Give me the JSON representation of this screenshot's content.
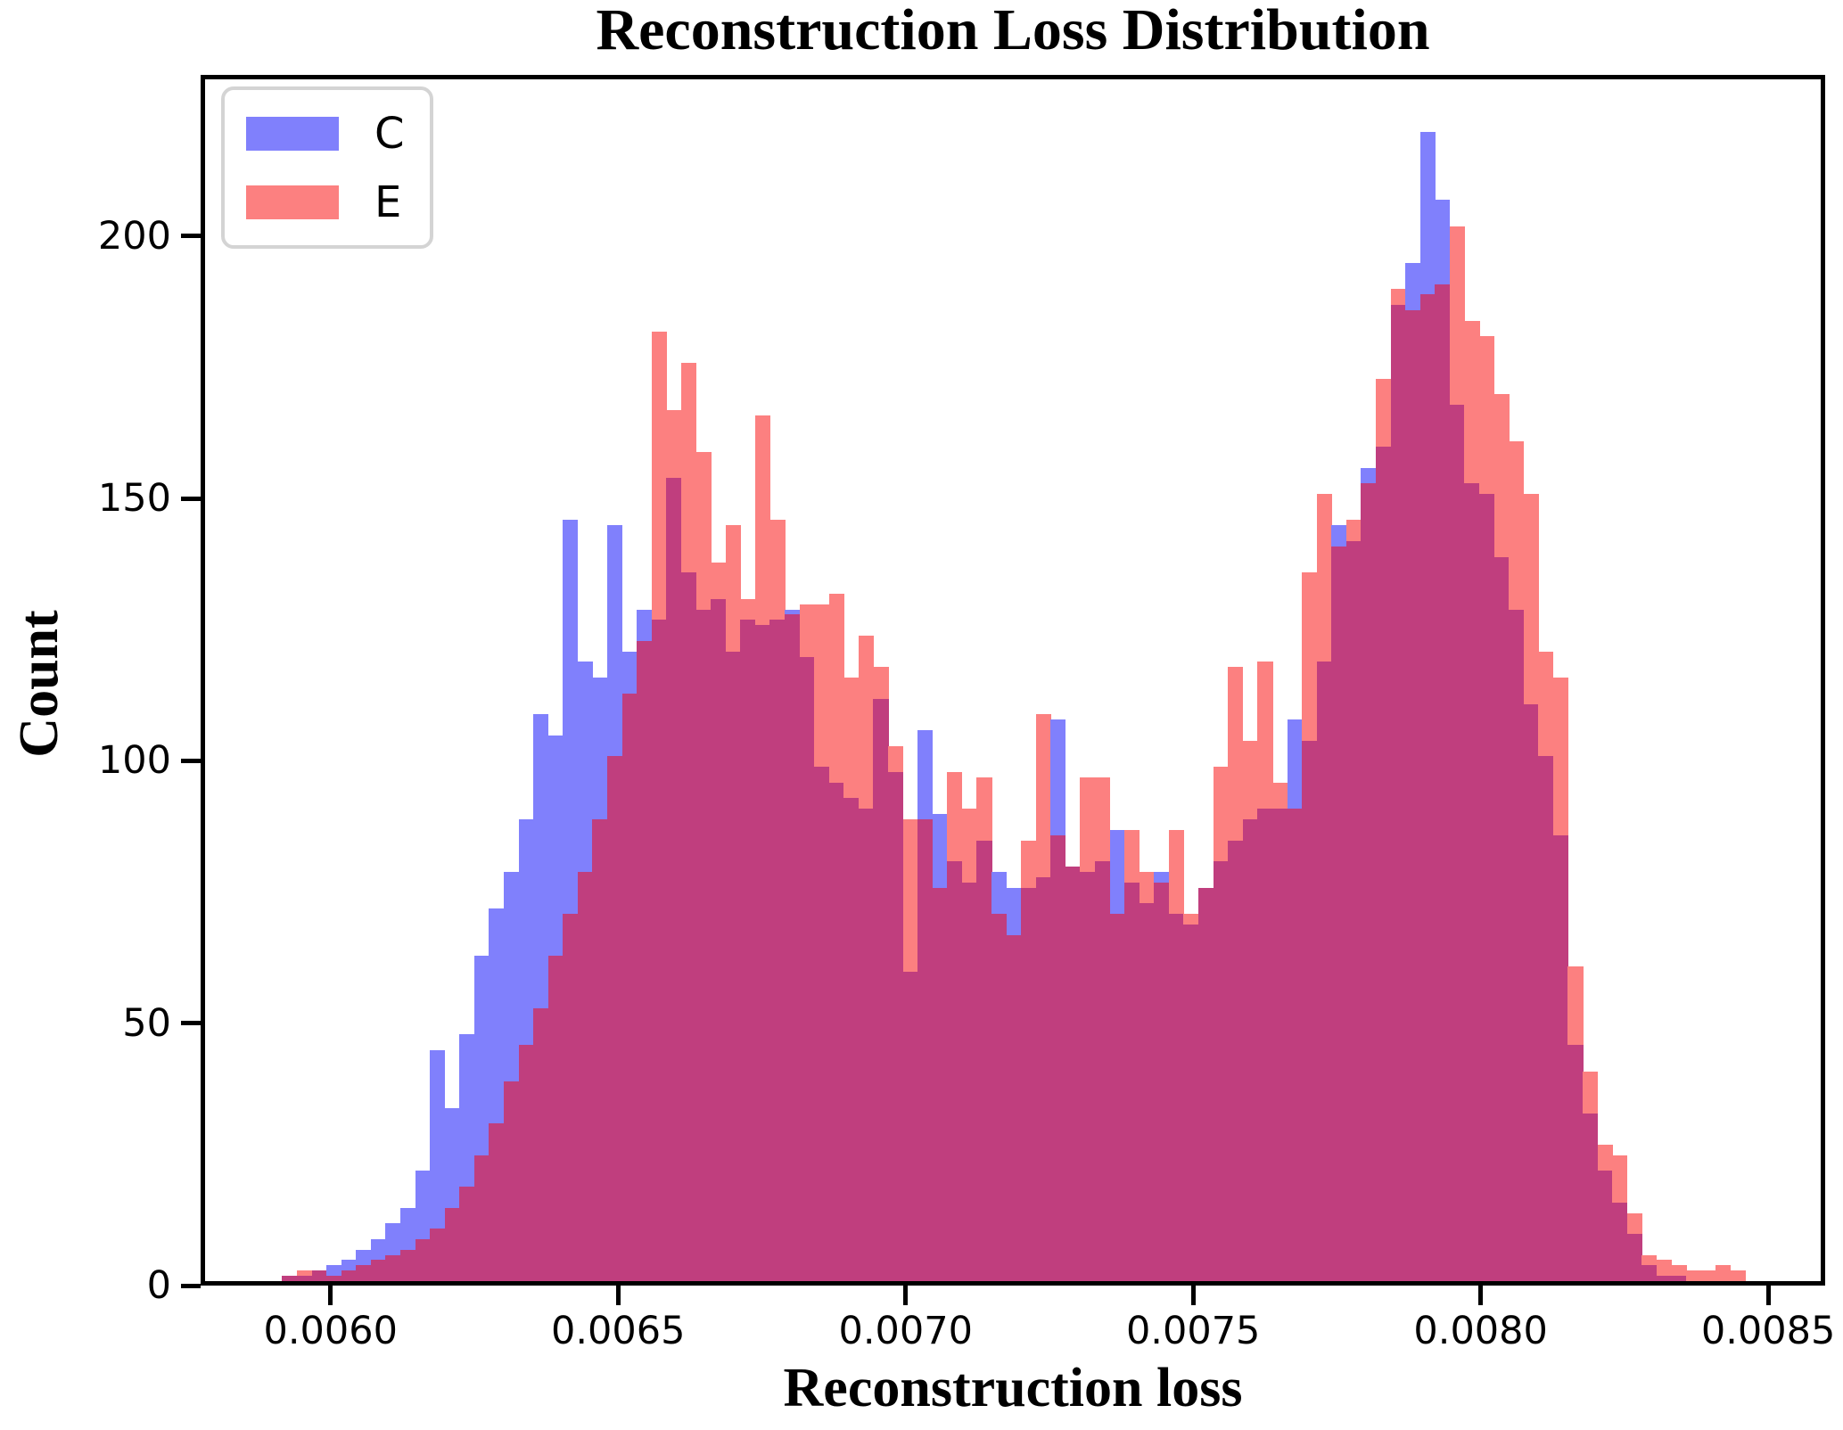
{
  "chart_data": {
    "type": "bar",
    "subtype": "overlaid-histogram",
    "title": "Reconstruction Loss Distribution",
    "xlabel": "Reconstruction loss",
    "ylabel": "Count",
    "xlim": [
      0.005774,
      0.008599
    ],
    "ylim": [
      0,
      230.7
    ],
    "grid": false,
    "legend_position": "upper-left",
    "bin_start": 0.00589,
    "bin_width": 2.57e-05,
    "x_ticks": [
      {
        "value": 0.006,
        "label": "0.0060"
      },
      {
        "value": 0.0065,
        "label": "0.0065"
      },
      {
        "value": 0.007,
        "label": "0.0070"
      },
      {
        "value": 0.0075,
        "label": "0.0075"
      },
      {
        "value": 0.008,
        "label": "0.0080"
      },
      {
        "value": 0.0085,
        "label": "0.0085"
      }
    ],
    "y_ticks": [
      {
        "value": 0,
        "label": "0"
      },
      {
        "value": 50,
        "label": "50"
      },
      {
        "value": 100,
        "label": "100"
      },
      {
        "value": 150,
        "label": "150"
      },
      {
        "value": 200,
        "label": "200"
      }
    ],
    "overlap_color": "#c03e7e",
    "series": [
      {
        "name": "C",
        "color": "#8080fc",
        "values": [
          0,
          1,
          1,
          2,
          3,
          4,
          6,
          8,
          11,
          14,
          21,
          44,
          33,
          47,
          62,
          71,
          78,
          88,
          108,
          104,
          145,
          118,
          115,
          144,
          120,
          128,
          126,
          153,
          135,
          128,
          130,
          120,
          126,
          125,
          126,
          128,
          119,
          98,
          95,
          92,
          90,
          111,
          97,
          59,
          105,
          89,
          80,
          76,
          84,
          78,
          75,
          75,
          77,
          107,
          79,
          78,
          80,
          86,
          76,
          72,
          78,
          70,
          68,
          75,
          80,
          84,
          88,
          90,
          90,
          107,
          103,
          118,
          144,
          141,
          155,
          159,
          186,
          194,
          219,
          206,
          167,
          152,
          150,
          138,
          128,
          110,
          100,
          85,
          45,
          32,
          21,
          15,
          9,
          3,
          1,
          1,
          0,
          0,
          0,
          0
        ]
      },
      {
        "name": "E",
        "color": "#fc8080",
        "values": [
          0,
          1,
          2,
          2,
          1,
          2,
          3,
          4,
          5,
          6,
          8,
          10,
          14,
          18,
          24,
          30,
          38,
          45,
          52,
          62,
          70,
          78,
          88,
          100,
          112,
          122,
          181,
          166,
          175,
          158,
          137,
          144,
          130,
          165,
          145,
          127,
          129,
          129,
          131,
          115,
          123,
          117,
          102,
          88,
          88,
          75,
          97,
          90,
          96,
          70,
          66,
          84,
          108,
          85,
          79,
          96,
          96,
          70,
          86,
          78,
          76,
          86,
          70,
          75,
          98,
          117,
          103,
          118,
          95,
          90,
          135,
          150,
          140,
          145,
          152,
          172,
          189,
          185,
          188,
          190,
          201,
          183,
          180,
          169,
          160,
          150,
          120,
          115,
          60,
          40,
          26,
          24,
          13,
          5,
          4,
          3,
          2,
          2,
          3,
          2
        ]
      }
    ]
  },
  "legend": {
    "items": [
      {
        "label": "C",
        "color": "#8080fc"
      },
      {
        "label": "E",
        "color": "#fc8080"
      }
    ]
  }
}
